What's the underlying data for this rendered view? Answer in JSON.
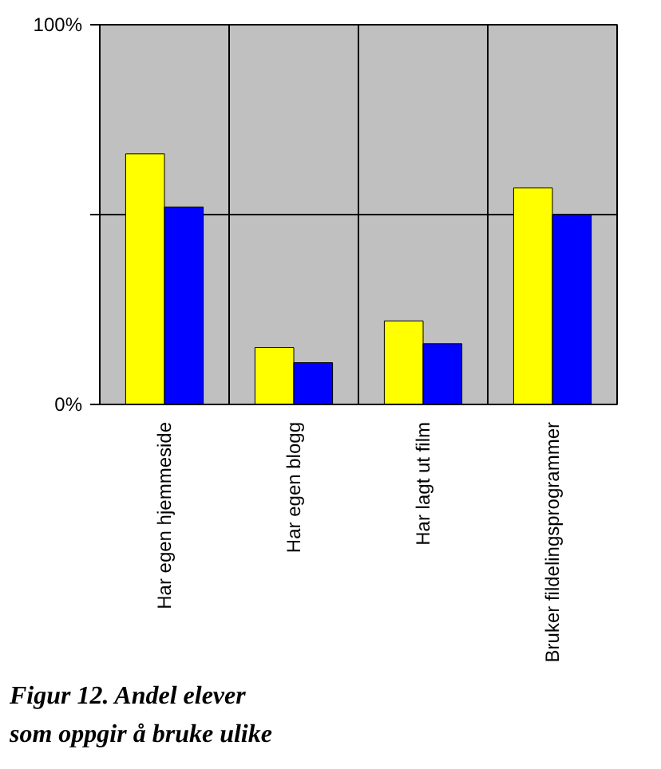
{
  "chart_data": {
    "type": "bar",
    "categories": [
      "Har egen hjemmeside",
      "Har egen blogg",
      "Har lagt ut film",
      "Bruker fildelingsprogrammer"
    ],
    "series": [
      {
        "color": "#ffff00",
        "values": [
          66,
          15,
          22,
          57
        ]
      },
      {
        "color": "#0000ff",
        "values": [
          52,
          11,
          16,
          50
        ]
      }
    ],
    "ylim": [
      0,
      100
    ],
    "yticks": [
      {
        "value": 0,
        "label": "0%"
      },
      {
        "value": 50,
        "label": null
      },
      {
        "value": 100,
        "label": "100%"
      }
    ],
    "grid": true,
    "annotations": [
      "Figur 12. Andel elever",
      "som oppgir å bruke ulike"
    ]
  }
}
